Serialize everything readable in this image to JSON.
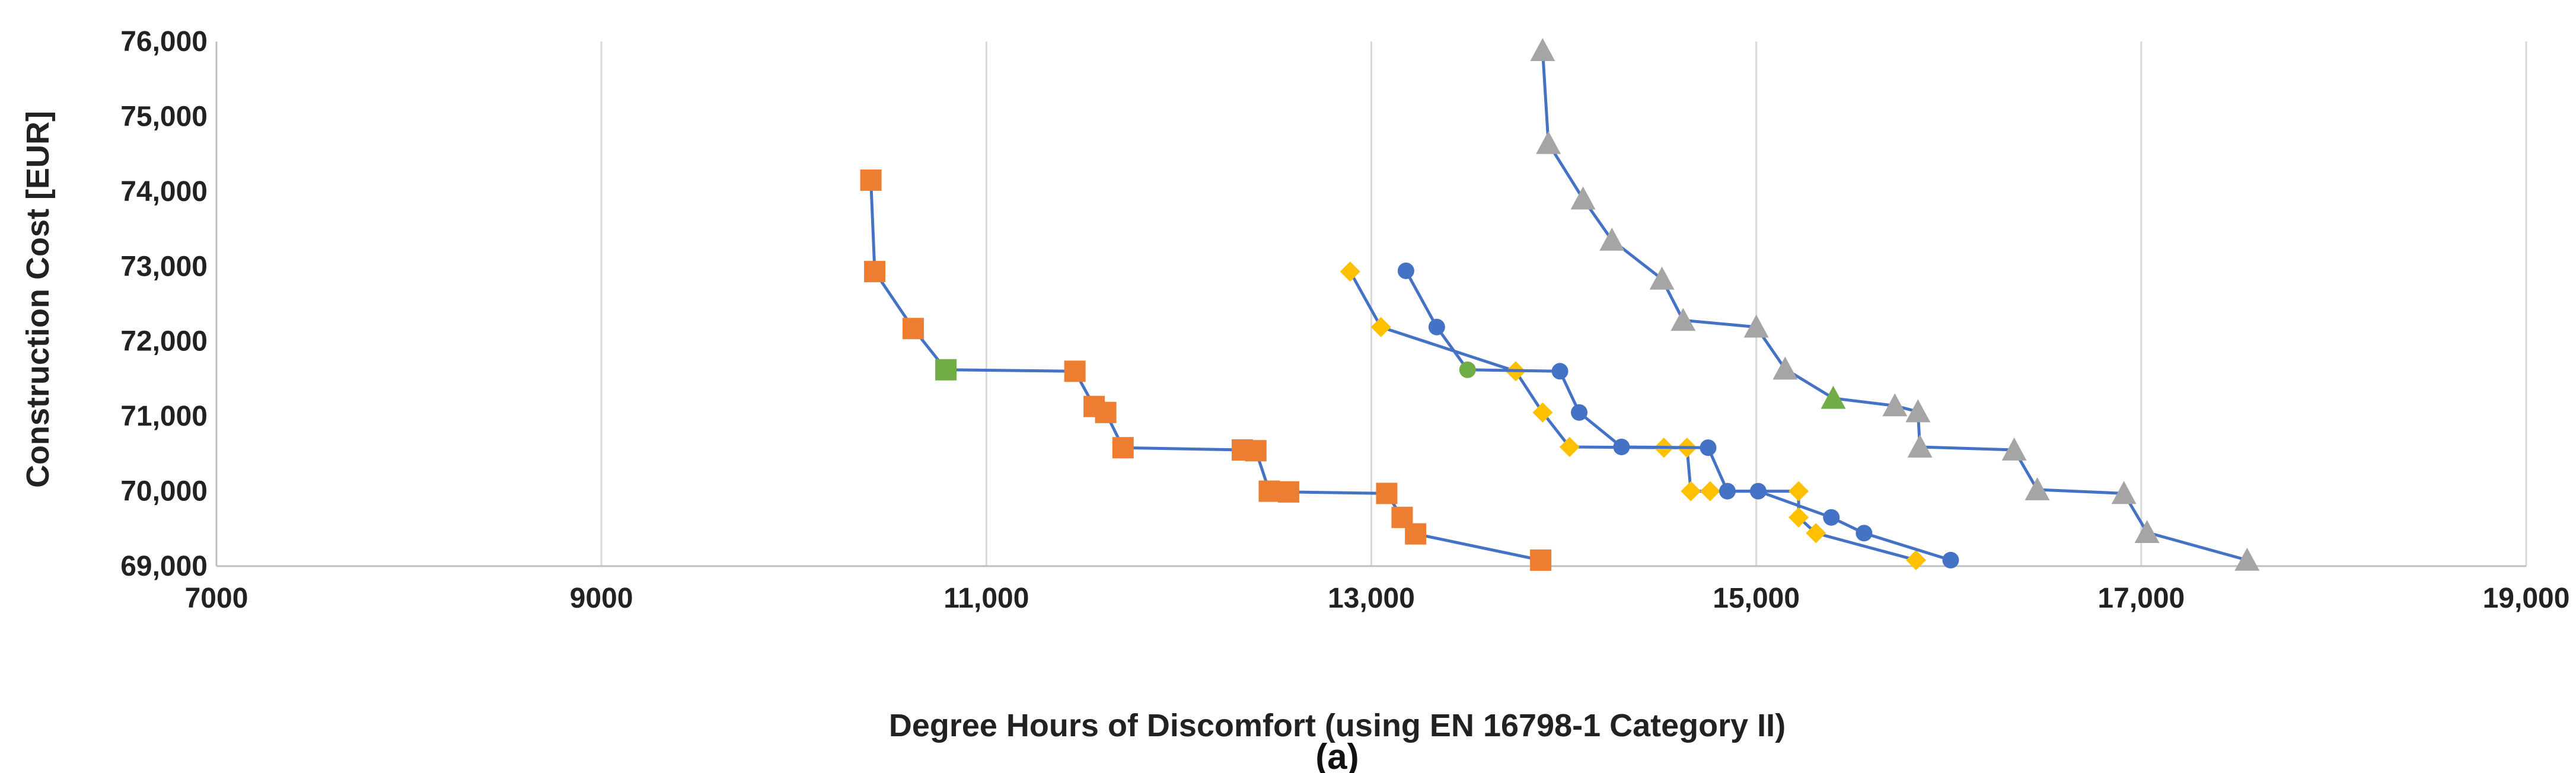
{
  "chart_data": {
    "type": "scatter",
    "title": "",
    "xlabel": "Degree Hours of Discomfort (using EN 16798-1 Category II)",
    "ylabel": "Construction Cost [EUR]",
    "caption": "(a)",
    "xlim": [
      7000,
      19000
    ],
    "ylim": [
      69000,
      76000
    ],
    "x_ticks": [
      7000,
      9000,
      11000,
      13000,
      15000,
      17000,
      19000
    ],
    "x_tick_labels": [
      "7000",
      "9000",
      "11,000",
      "13,000",
      "15,000",
      "17,000",
      "19,000"
    ],
    "y_ticks": [
      69000,
      70000,
      71000,
      72000,
      73000,
      74000,
      75000,
      76000
    ],
    "y_tick_labels": [
      "69,000",
      "70,000",
      "71,000",
      "72,000",
      "73,000",
      "74,000",
      "75,000",
      "76,000"
    ],
    "grid": "vertical",
    "line_color": "#4472c4",
    "highlight_color": "#70ad47",
    "series": [
      {
        "marker": "square",
        "color": "#ed7d31",
        "highlight_index": 3,
        "points": [
          [
            10400,
            74150
          ],
          [
            10420,
            72930
          ],
          [
            10620,
            72170
          ],
          [
            10790,
            71620
          ],
          [
            11460,
            71600
          ],
          [
            11560,
            71130
          ],
          [
            11620,
            71050
          ],
          [
            11710,
            70580
          ],
          [
            12330,
            70550
          ],
          [
            12400,
            70540
          ],
          [
            12470,
            70000
          ],
          [
            12570,
            69990
          ],
          [
            13080,
            69970
          ],
          [
            13160,
            69650
          ],
          [
            13230,
            69430
          ],
          [
            13880,
            69080
          ]
        ]
      },
      {
        "marker": "diamond",
        "color": "#ffc000",
        "highlight_index": -1,
        "points": [
          [
            12890,
            72930
          ],
          [
            13050,
            72190
          ],
          [
            13750,
            71600
          ],
          [
            13890,
            71050
          ],
          [
            14030,
            70590
          ],
          [
            14520,
            70580
          ],
          [
            14640,
            70580
          ],
          [
            14660,
            70000
          ],
          [
            14760,
            70000
          ],
          [
            15220,
            70000
          ],
          [
            15220,
            69650
          ],
          [
            15310,
            69440
          ],
          [
            15830,
            69080
          ]
        ]
      },
      {
        "marker": "circle",
        "color": "#4472c4",
        "highlight_index": 2,
        "points": [
          [
            13180,
            72940
          ],
          [
            13340,
            72190
          ],
          [
            13500,
            71620
          ],
          [
            13980,
            71600
          ],
          [
            14080,
            71050
          ],
          [
            14300,
            70590
          ],
          [
            14750,
            70580
          ],
          [
            14850,
            70000
          ],
          [
            15010,
            70000
          ],
          [
            15390,
            69650
          ],
          [
            15560,
            69440
          ],
          [
            16010,
            69080
          ]
        ]
      },
      {
        "marker": "triangle",
        "color": "#a5a5a5",
        "highlight_index": 8,
        "points": [
          [
            13890,
            75880
          ],
          [
            13920,
            74640
          ],
          [
            14100,
            73900
          ],
          [
            14250,
            73350
          ],
          [
            14510,
            72830
          ],
          [
            14620,
            72280
          ],
          [
            15000,
            72190
          ],
          [
            15150,
            71630
          ],
          [
            15400,
            71240
          ],
          [
            15720,
            71140
          ],
          [
            15840,
            71060
          ],
          [
            15850,
            70590
          ],
          [
            16340,
            70550
          ],
          [
            16460,
            70020
          ],
          [
            16910,
            69970
          ],
          [
            17030,
            69450
          ],
          [
            17550,
            69080
          ]
        ]
      }
    ]
  }
}
